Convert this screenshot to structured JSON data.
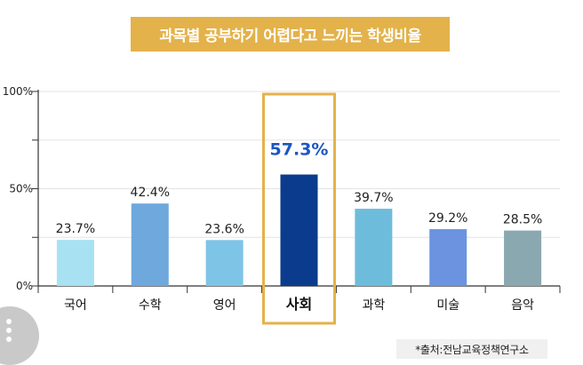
{
  "title": "과목별 공부하기 어렵다고 느끼는 학생비율",
  "source": "*출처:전남교육정책연구소",
  "colors": {
    "title_bg": "#e4b24a",
    "highlight_box": "#e4b24a",
    "highlight_label": "#1a56c4"
  },
  "icons": [
    "menu-dots-icon"
  ],
  "chart_data": {
    "type": "bar",
    "categories": [
      "국어",
      "수학",
      "영어",
      "사회",
      "과학",
      "미술",
      "음악"
    ],
    "values": [
      23.7,
      42.4,
      23.6,
      57.3,
      39.7,
      29.2,
      28.5
    ],
    "value_labels": [
      "23.7%",
      "42.4%",
      "23.6%",
      "57.3%",
      "39.7%",
      "29.2%",
      "28.5%"
    ],
    "bar_colors": [
      "#a8e2f2",
      "#6fa8dc",
      "#7ec4e6",
      "#0b3b8c",
      "#6dbcdb",
      "#6b93e0",
      "#8aa8b0"
    ],
    "highlight_index": 3,
    "y_ticks": [
      0,
      50,
      100
    ],
    "y_tick_labels": [
      "0%",
      "50%",
      "100%"
    ],
    "ylim": [
      0,
      100
    ],
    "grid": true
  }
}
